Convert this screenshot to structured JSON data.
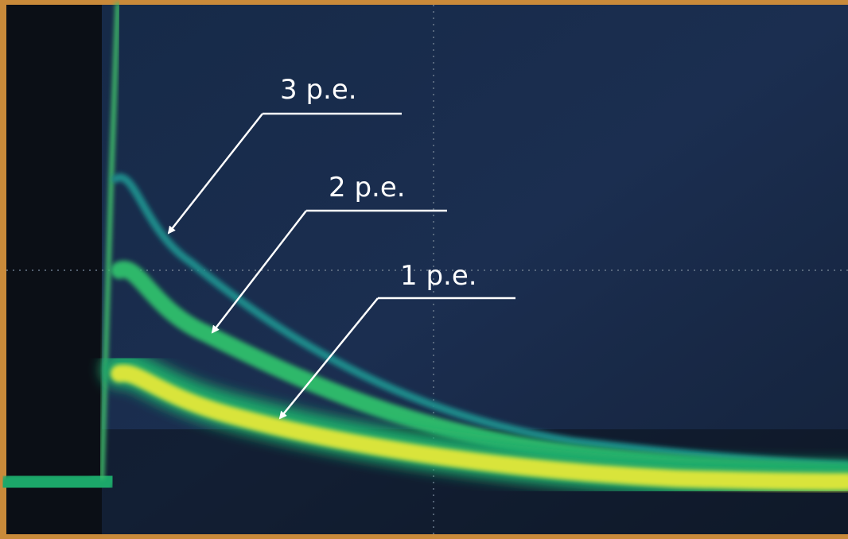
{
  "annotations": [
    {
      "label": "3 p.e."
    },
    {
      "label": "2 p.e."
    },
    {
      "label": "1 p.e."
    }
  ]
}
